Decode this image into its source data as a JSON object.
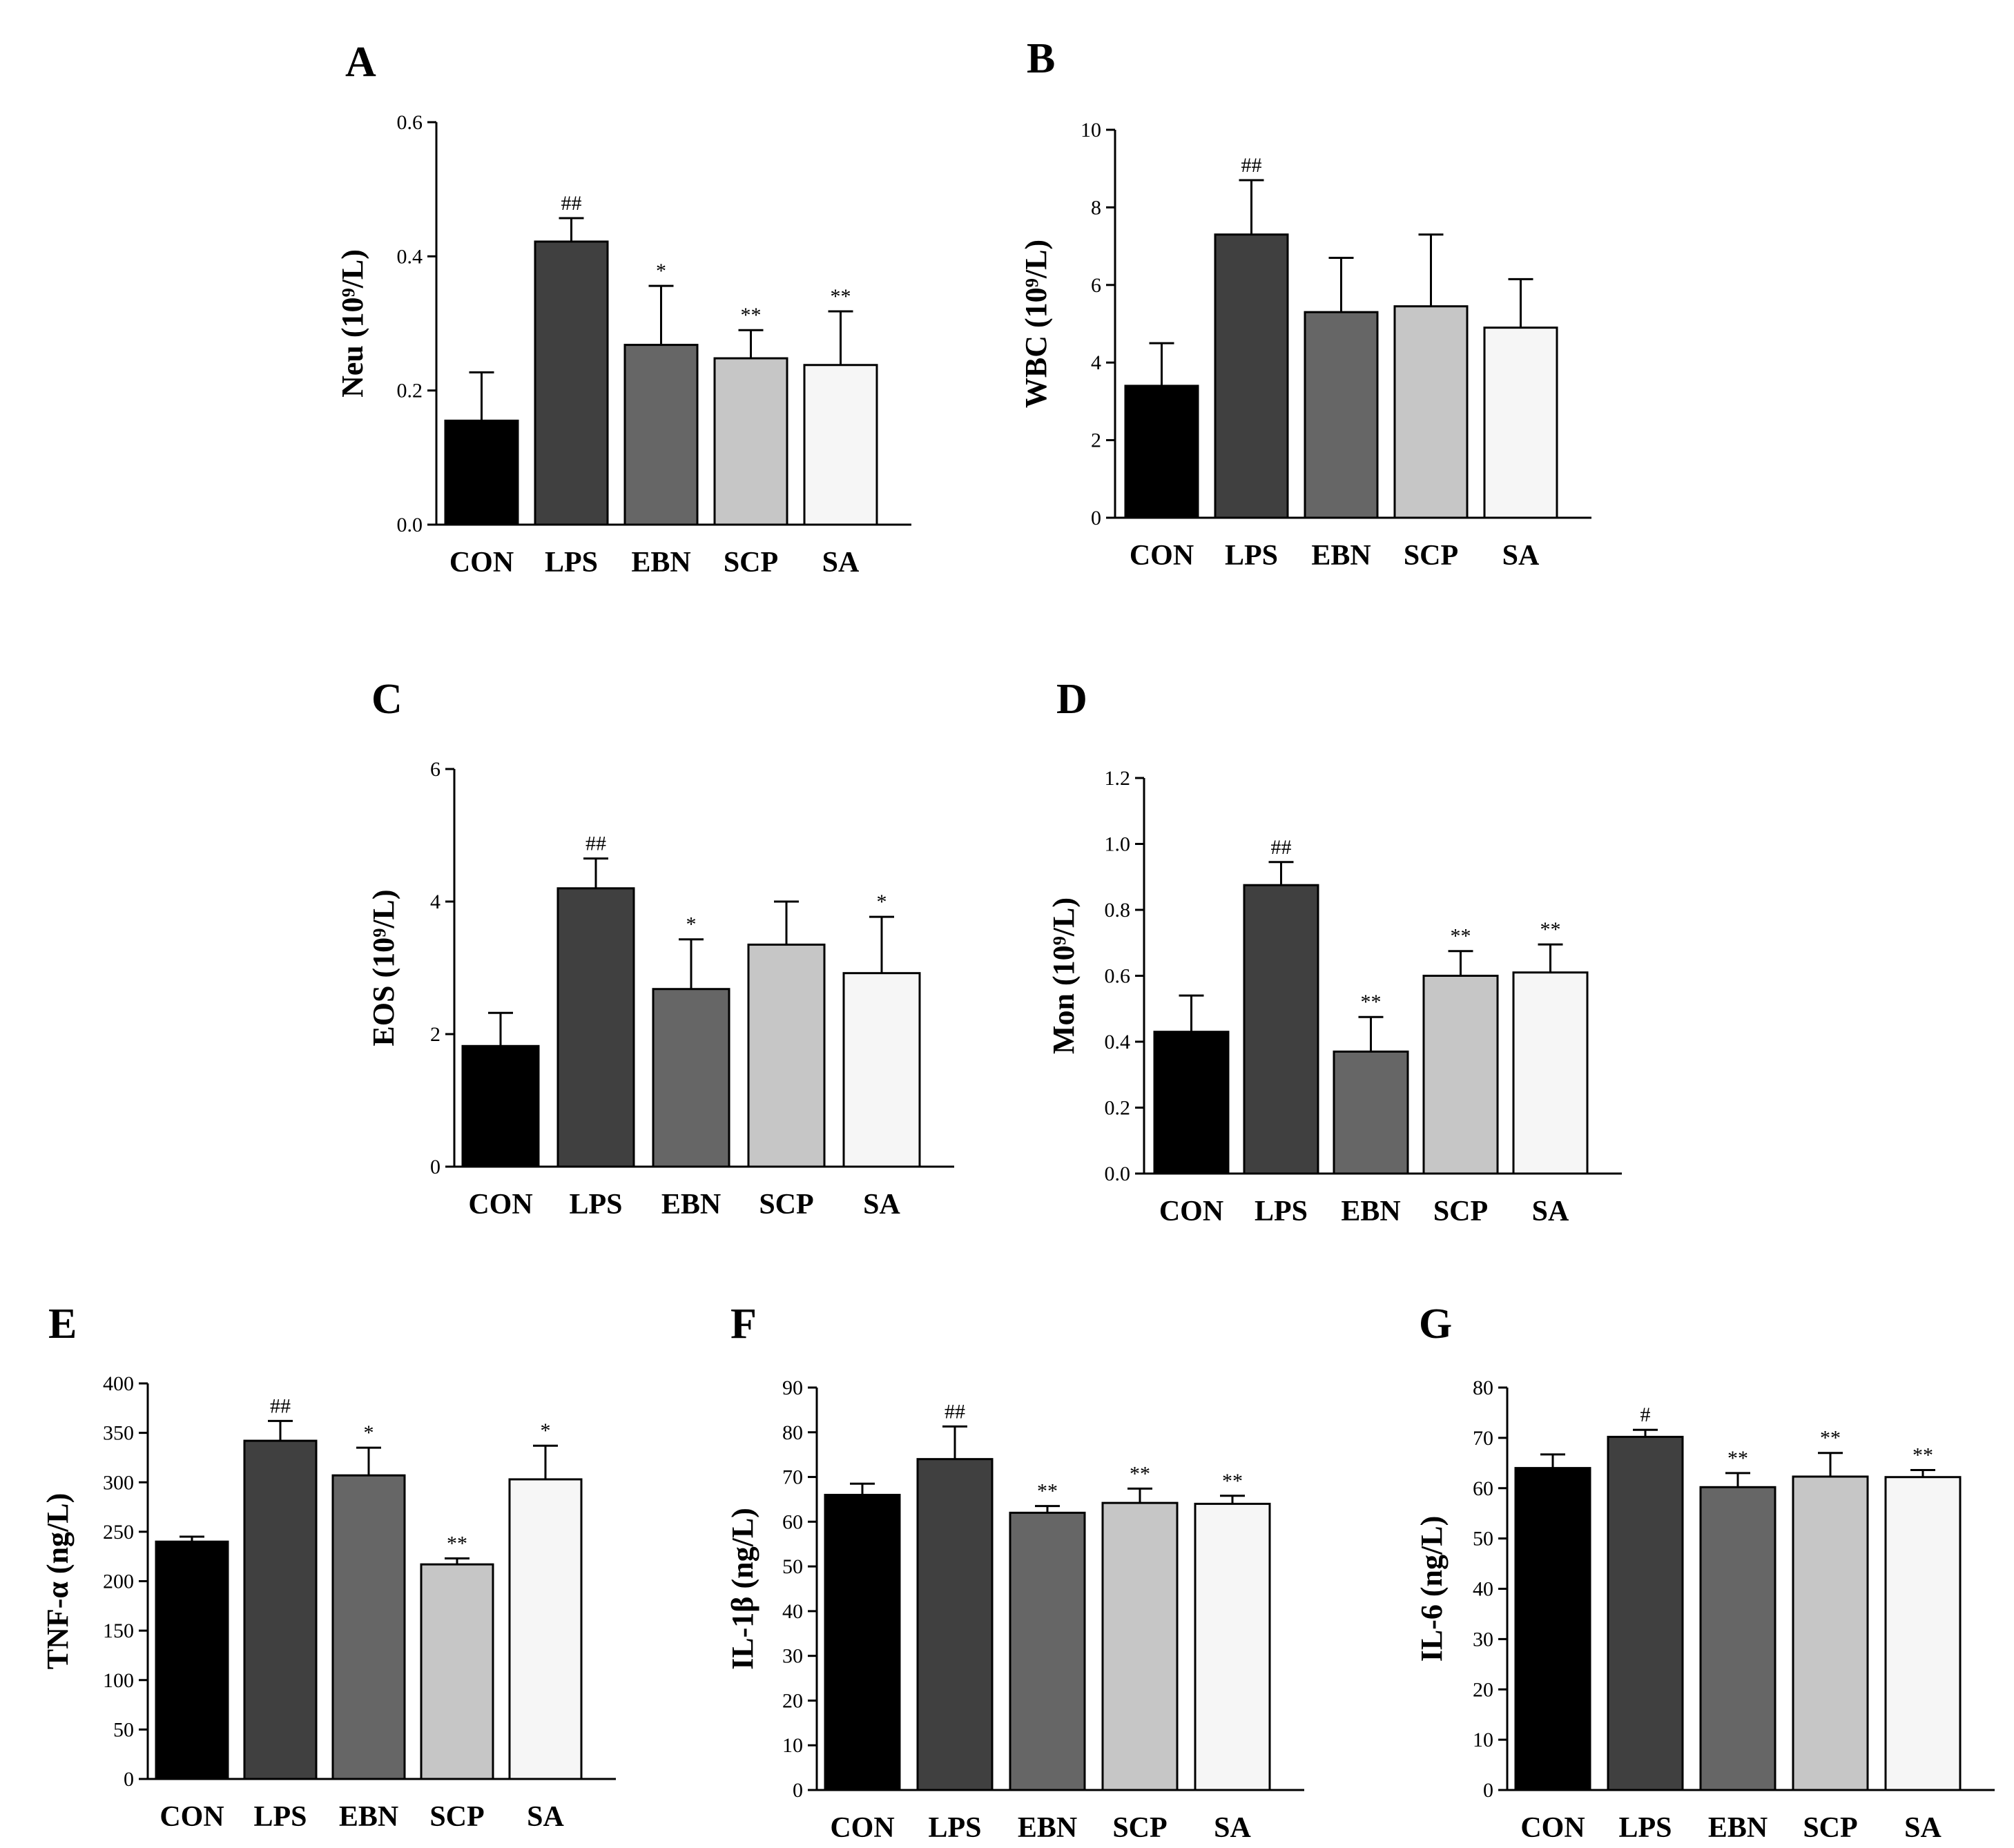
{
  "figure": {
    "colors": {
      "CON": "#000000",
      "LPS": "#404040",
      "EBN": "#666666",
      "SCP": "#c6c6c6",
      "SA": "#f6f6f6",
      "axis": "#000000",
      "bar_border": "#000000"
    }
  },
  "chart_data": [
    {
      "panel": "A",
      "type": "bar",
      "ylabel": "Neu (10⁹/L)",
      "categories": [
        "CON",
        "LPS",
        "EBN",
        "SCP",
        "SA"
      ],
      "values": [
        0.155,
        0.422,
        0.268,
        0.248,
        0.238
      ],
      "errors": [
        0.072,
        0.035,
        0.088,
        0.042,
        0.08
      ],
      "significance": [
        "",
        "##",
        "*",
        "**",
        "**"
      ],
      "ylim": [
        0,
        0.6
      ],
      "yticks": [
        0.0,
        0.2,
        0.4,
        0.6
      ],
      "ytick_labels": [
        "0.0",
        "0.2",
        "0.4",
        "0.6"
      ]
    },
    {
      "panel": "B",
      "type": "bar",
      "ylabel": "WBC (10⁹/L)",
      "categories": [
        "CON",
        "LPS",
        "EBN",
        "SCP",
        "SA"
      ],
      "values": [
        3.4,
        7.3,
        5.3,
        5.45,
        4.9
      ],
      "errors": [
        1.1,
        1.4,
        1.4,
        1.85,
        1.25
      ],
      "significance": [
        "",
        "##",
        "",
        "",
        ""
      ],
      "ylim": [
        0,
        10
      ],
      "yticks": [
        0,
        2,
        4,
        6,
        8,
        10
      ],
      "ytick_labels": [
        "0",
        "2",
        "4",
        "6",
        "8",
        "10"
      ]
    },
    {
      "panel": "C",
      "type": "bar",
      "ylabel": "EOS (10⁹/L)",
      "categories": [
        "CON",
        "LPS",
        "EBN",
        "SCP",
        "SA"
      ],
      "values": [
        1.82,
        4.2,
        2.68,
        3.35,
        2.92
      ],
      "errors": [
        0.5,
        0.45,
        0.75,
        0.65,
        0.85
      ],
      "significance": [
        "",
        "##",
        "*",
        "",
        "*"
      ],
      "ylim": [
        0,
        6
      ],
      "yticks": [
        0,
        2,
        4,
        6
      ],
      "ytick_labels": [
        "0",
        "2",
        "4",
        "6"
      ]
    },
    {
      "panel": "D",
      "type": "bar",
      "ylabel": "Mon (10⁹/L)",
      "categories": [
        "CON",
        "LPS",
        "EBN",
        "SCP",
        "SA"
      ],
      "values": [
        0.43,
        0.875,
        0.37,
        0.6,
        0.61
      ],
      "errors": [
        0.11,
        0.07,
        0.105,
        0.075,
        0.085
      ],
      "significance": [
        "",
        "##",
        "**",
        "**",
        "**"
      ],
      "ylim": [
        0,
        1.2
      ],
      "yticks": [
        0.0,
        0.2,
        0.4,
        0.6,
        0.8,
        1.0,
        1.2
      ],
      "ytick_labels": [
        "0.0",
        "0.2",
        "0.4",
        "0.6",
        "0.8",
        "1.0",
        "1.2"
      ]
    },
    {
      "panel": "E",
      "type": "bar",
      "ylabel": "TNF-α (ng/L)",
      "categories": [
        "CON",
        "LPS",
        "EBN",
        "SCP",
        "SA"
      ],
      "values": [
        240,
        342,
        307,
        217,
        303
      ],
      "errors": [
        5,
        20,
        28,
        6,
        34
      ],
      "significance": [
        "",
        "##",
        "*",
        "**",
        "*"
      ],
      "ylim": [
        0,
        400
      ],
      "yticks": [
        0,
        50,
        100,
        150,
        200,
        250,
        300,
        350,
        400
      ],
      "ytick_labels": [
        "0",
        "50",
        "100",
        "150",
        "200",
        "250",
        "300",
        "350",
        "400"
      ]
    },
    {
      "panel": "F",
      "type": "bar",
      "ylabel": "IL-1β (ng/L)",
      "categories": [
        "CON",
        "LPS",
        "EBN",
        "SCP",
        "SA"
      ],
      "values": [
        66,
        74,
        62,
        64.2,
        64
      ],
      "errors": [
        2.5,
        7.3,
        1.5,
        3.2,
        1.8
      ],
      "significance": [
        "",
        "##",
        "**",
        "**",
        "**"
      ],
      "ylim": [
        0,
        90
      ],
      "yticks": [
        0,
        10,
        20,
        30,
        40,
        50,
        60,
        70,
        80,
        90
      ],
      "ytick_labels": [
        "0",
        "10",
        "20",
        "30",
        "40",
        "50",
        "60",
        "70",
        "80",
        "90"
      ]
    },
    {
      "panel": "G",
      "type": "bar",
      "ylabel": "IL-6 (ng/L)",
      "categories": [
        "CON",
        "LPS",
        "EBN",
        "SCP",
        "SA"
      ],
      "values": [
        64,
        70.2,
        60.2,
        62.3,
        62.2
      ],
      "errors": [
        2.7,
        1.4,
        2.8,
        4.7,
        1.4
      ],
      "significance": [
        "",
        "#",
        "**",
        "**",
        "**"
      ],
      "ylim": [
        0,
        80
      ],
      "yticks": [
        0,
        10,
        20,
        30,
        40,
        50,
        60,
        70,
        80
      ],
      "ytick_labels": [
        "0",
        "10",
        "20",
        "30",
        "40",
        "50",
        "60",
        "70",
        "80"
      ]
    }
  ]
}
